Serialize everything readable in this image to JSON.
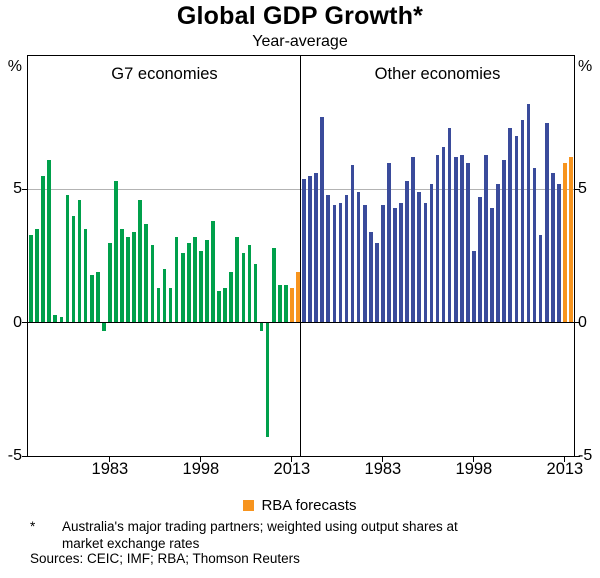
{
  "title": "Global GDP Growth*",
  "subtitle": "Year-average",
  "legend": {
    "label": "RBA forecasts"
  },
  "footnote": {
    "marker": "*",
    "text": "Australia's major trading partners; weighted using output shares at market exchange rates"
  },
  "sources": "Sources: CEIC; IMF; RBA; Thomson Reuters",
  "axis": {
    "unit": "%"
  },
  "chart_data": {
    "type": "bar",
    "ylabel": "%",
    "ylim": [
      -5,
      10
    ],
    "gridlines": [
      5
    ],
    "yticks": [
      {
        "label": "5",
        "value": 5
      },
      {
        "label": "0",
        "value": 0
      },
      {
        "label": "-5",
        "value": -5
      }
    ],
    "forecast_color": "#F7941E",
    "legend_entries": [
      {
        "label": "RBA forecasts",
        "color": "#F7941E"
      }
    ],
    "panels": [
      {
        "id": "g7",
        "label": "G7 economies",
        "color": "#00A04B",
        "start_year": 1970,
        "forecast_from_year": 2013,
        "xticks": [
          1983,
          1998,
          2013
        ],
        "values": [
          3.3,
          3.5,
          5.5,
          6.1,
          0.3,
          0.2,
          4.8,
          4.0,
          4.6,
          3.5,
          1.8,
          1.9,
          -0.3,
          3.0,
          5.3,
          3.5,
          3.2,
          3.4,
          4.6,
          3.7,
          2.9,
          1.3,
          2.0,
          1.3,
          3.2,
          2.6,
          3.0,
          3.2,
          2.7,
          3.1,
          3.8,
          1.2,
          1.3,
          1.9,
          3.2,
          2.6,
          2.9,
          2.2,
          -0.3,
          -4.3,
          2.8,
          1.4,
          1.4,
          1.3,
          1.9
        ]
      },
      {
        "id": "other",
        "label": "Other economies",
        "color": "#3A4B9B",
        "start_year": 1970,
        "forecast_from_year": 2013,
        "xticks": [
          1983,
          1998,
          2013
        ],
        "values": [
          5.4,
          5.5,
          5.6,
          7.7,
          4.8,
          4.4,
          4.5,
          4.8,
          5.9,
          4.9,
          4.4,
          3.4,
          3.0,
          4.4,
          6.0,
          4.3,
          4.5,
          5.3,
          6.2,
          4.9,
          4.5,
          5.2,
          6.3,
          6.6,
          7.3,
          6.2,
          6.3,
          6.0,
          2.7,
          4.7,
          6.3,
          4.3,
          5.2,
          6.1,
          7.3,
          7.0,
          7.6,
          8.2,
          5.8,
          3.3,
          7.5,
          5.6,
          5.2,
          6.0,
          6.2
        ]
      }
    ]
  }
}
